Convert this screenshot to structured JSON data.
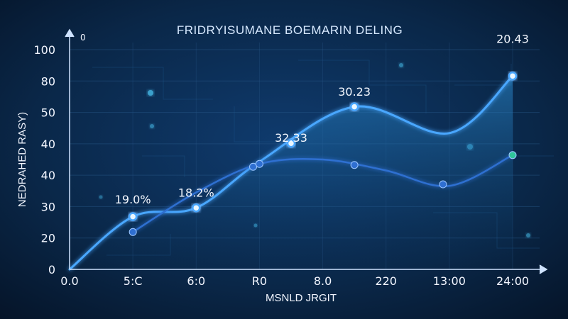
{
  "chart_data": {
    "type": "line",
    "title": "FRIDRYISUMANE BOEMARIN DELING",
    "ylabel": "NEDRAHED RASY)",
    "xlabel": "MSNLD JRGIT",
    "corner_label": "0",
    "y_ticks": [
      "100",
      "80",
      "50",
      "40",
      "40",
      "30",
      "20",
      "0"
    ],
    "x_ticks": [
      "0.0",
      "5:C",
      "6:0",
      "R0",
      "8.0",
      "220",
      "13:00",
      "24:00"
    ],
    "ylim": [
      0,
      100
    ],
    "xlim": [
      0,
      7
    ],
    "grid": true,
    "series": [
      {
        "color": "#4aa7ff",
        "x": [
          0,
          1,
          2,
          3,
          4.5,
          6,
          7
        ],
        "y": [
          0,
          24,
          28,
          49,
          74,
          62,
          88
        ],
        "markers": [
          1,
          2,
          3.5,
          4.5,
          7
        ]
      },
      {
        "color": "#2f6fd1",
        "x": [
          1,
          2,
          3,
          4,
          5,
          6,
          7
        ],
        "y": [
          17,
          35,
          48,
          50,
          45,
          38,
          52
        ],
        "markers": [
          1,
          2.9,
          3,
          4.5,
          5.9,
          7
        ]
      }
    ],
    "annotations": [
      {
        "text": "19.0%",
        "x": 1,
        "y": 30
      },
      {
        "text": "18.2%",
        "x": 2,
        "y": 33
      },
      {
        "text": "32.33",
        "x": 3.5,
        "y": 58
      },
      {
        "text": "30.23",
        "x": 4.5,
        "y": 79
      },
      {
        "text": "20.43",
        "x": 7,
        "y": 103
      }
    ]
  }
}
